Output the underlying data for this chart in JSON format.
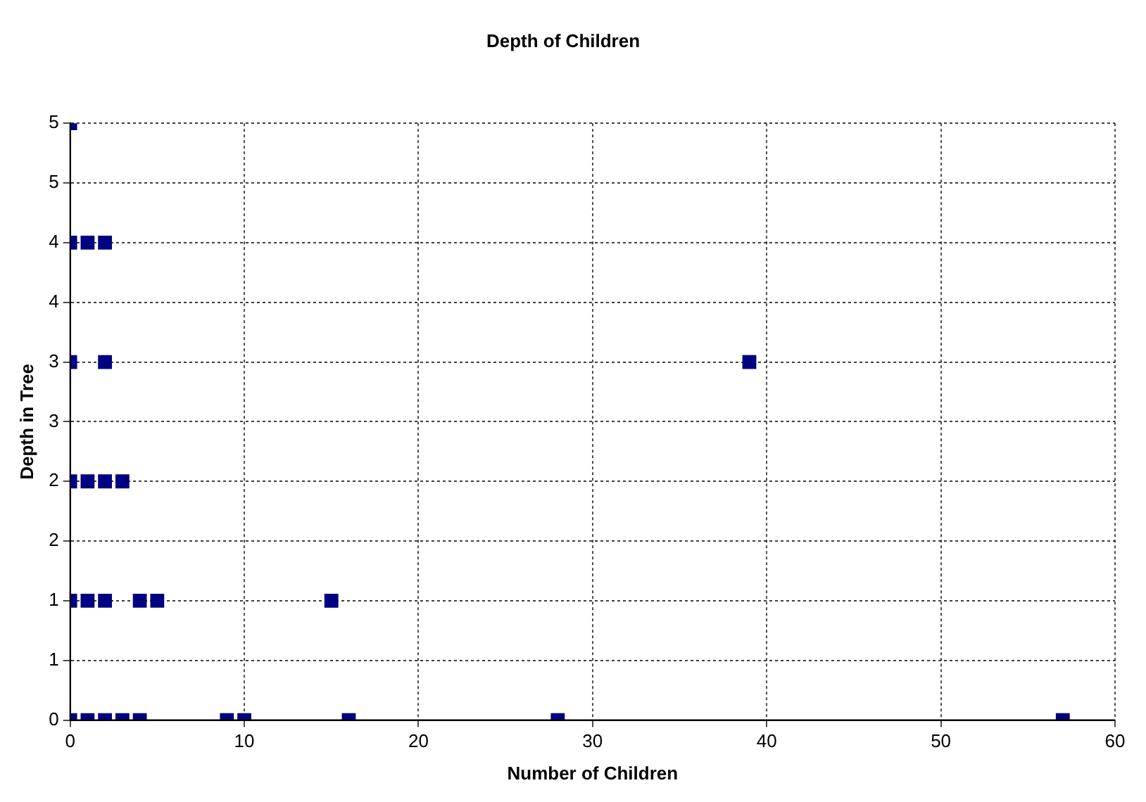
{
  "chart_data": {
    "type": "scatter",
    "title": "Depth of Children",
    "xlabel": "Number of Children",
    "ylabel": "Depth in Tree",
    "x": [
      0,
      1,
      2,
      3,
      4,
      9,
      10,
      16,
      28,
      57,
      0,
      1,
      2,
      4,
      5,
      15,
      0,
      1,
      2,
      3,
      0,
      2,
      39,
      0,
      1,
      2,
      0
    ],
    "values": [
      0,
      0,
      0,
      0,
      0,
      0,
      0,
      0,
      0,
      0,
      1,
      1,
      1,
      1,
      1,
      1,
      2,
      2,
      2,
      2,
      3,
      3,
      3,
      4,
      4,
      4,
      5
    ],
    "color": "#000080",
    "marker": "square",
    "xlim": [
      0,
      60
    ],
    "xticks": [
      0,
      10,
      20,
      30,
      40,
      50,
      60
    ],
    "ylim": [
      0,
      5
    ],
    "yticks": [
      0,
      {
        "value": 0.5,
        "label": "1"
      },
      1,
      {
        "value": 1.5,
        "label": "2"
      },
      2,
      {
        "value": 2.5,
        "label": "3"
      },
      3,
      {
        "value": 3.5,
        "label": "4"
      },
      4,
      {
        "value": 4.5,
        "label": "5"
      },
      5
    ],
    "grid": true,
    "legend": false
  }
}
